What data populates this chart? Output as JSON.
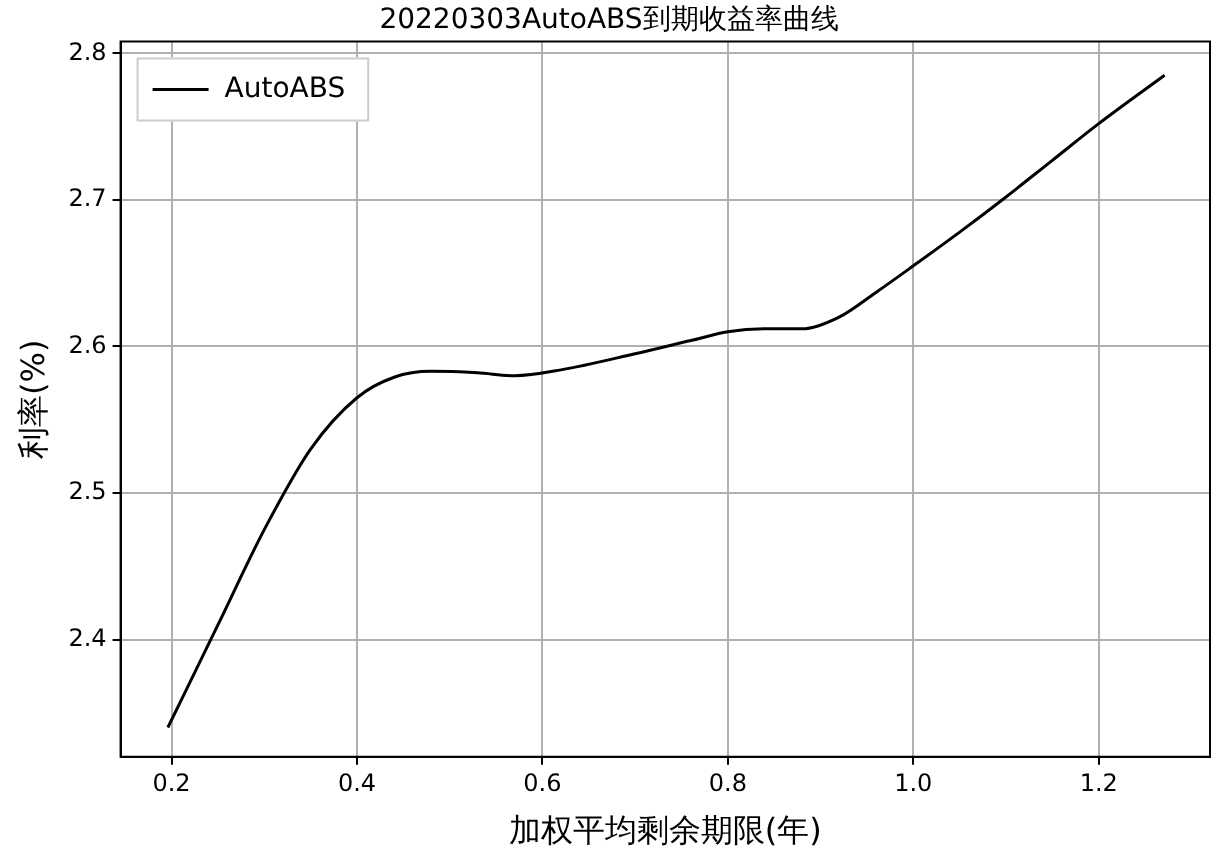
{
  "chart_data": {
    "type": "line",
    "title": "20220303AutoABS到期收益率曲线",
    "xlabel": "加权平均剩余期限(年)",
    "ylabel": "利率(%)",
    "x": [
      0.196,
      0.25,
      0.3,
      0.35,
      0.4,
      0.44,
      0.48,
      0.53,
      0.57,
      0.62,
      0.7,
      0.76,
      0.8,
      0.84,
      0.88,
      0.92,
      0.96,
      1.0,
      1.05,
      1.1,
      1.15,
      1.2,
      1.271
    ],
    "series": [
      {
        "name": "AutoABS",
        "color": "#000000",
        "values": [
          2.34,
          2.41,
          2.475,
          2.53,
          2.565,
          2.579,
          2.583,
          2.582,
          2.58,
          2.584,
          2.595,
          2.604,
          2.61,
          2.612,
          2.612,
          2.62,
          2.637,
          2.655,
          2.678,
          2.702,
          2.727,
          2.752,
          2.785
        ]
      }
    ],
    "xlim": [
      0.145,
      1.32
    ],
    "xticks": [
      {
        "value": 0.2,
        "label": "0.2"
      },
      {
        "value": 0.4,
        "label": "0.4"
      },
      {
        "value": 0.6,
        "label": "0.6"
      },
      {
        "value": 0.8,
        "label": "0.8"
      },
      {
        "value": 1.0,
        "label": "1.0"
      },
      {
        "value": 1.2,
        "label": "1.2"
      }
    ],
    "ylim": [
      2.32,
      2.808
    ],
    "yticks": [
      {
        "value": 2.4,
        "label": "2.4"
      },
      {
        "value": 2.5,
        "label": "2.5"
      },
      {
        "value": 2.6,
        "label": "2.6"
      },
      {
        "value": 2.7,
        "label": "2.7"
      },
      {
        "value": 2.8,
        "label": "2.8"
      }
    ],
    "grid": true,
    "legend": "top left",
    "marker": "none",
    "line_style": "solid"
  }
}
